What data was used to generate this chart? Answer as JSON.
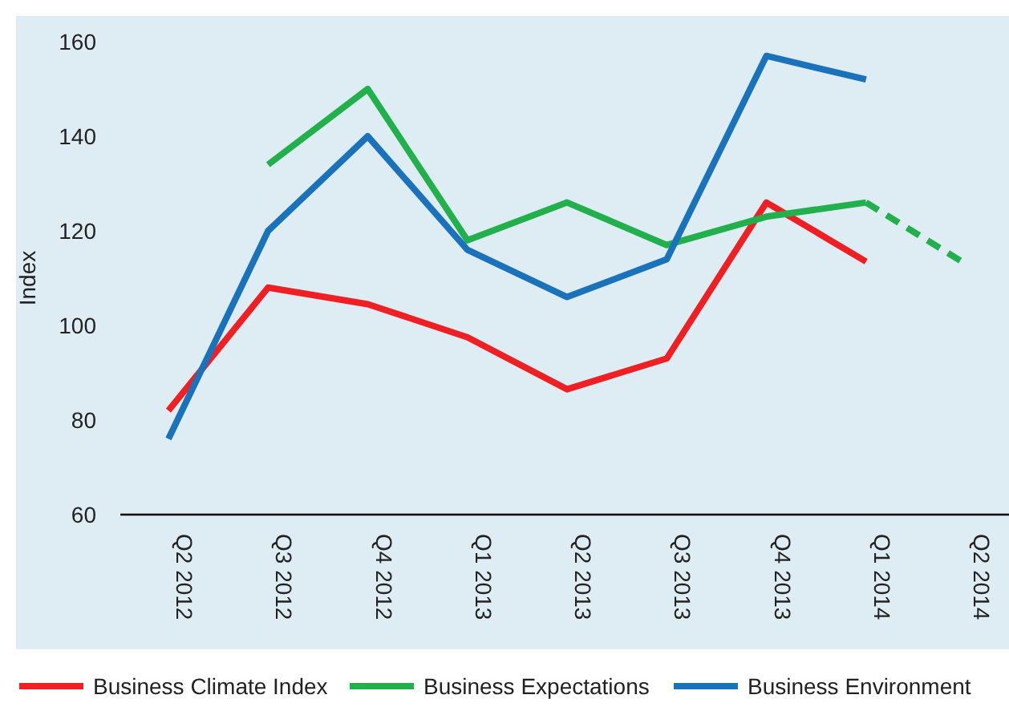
{
  "chart_data": {
    "type": "line",
    "ylabel": "Index",
    "categories": [
      "Q2 2012",
      "Q3 2012",
      "Q4 2012",
      "Q1 2013",
      "Q2 2013",
      "Q3 2013",
      "Q4 2013",
      "Q1 2014",
      "Q2 2014"
    ],
    "series": [
      {
        "name": "Business Climate Index",
        "color": "#ee2024",
        "values": [
          82,
          108,
          104.5,
          97.5,
          86.5,
          93,
          126,
          113.5,
          null
        ]
      },
      {
        "name": "Business Expectations",
        "color": "#21b04b",
        "values": [
          null,
          134,
          150,
          118,
          126,
          117,
          123,
          126,
          null
        ]
      },
      {
        "color": "#21b04b",
        "line_style": "dashed",
        "values": [
          null,
          null,
          null,
          null,
          null,
          null,
          null,
          126,
          113
        ]
      },
      {
        "name": "Business Environment",
        "color": "#1a72bb",
        "values": [
          76,
          120,
          140,
          116,
          106,
          114,
          157,
          152,
          null
        ]
      }
    ],
    "ylim": [
      60,
      160
    ],
    "yticks": [
      60,
      80,
      100,
      120,
      140,
      160
    ],
    "grid": false,
    "legend": "bottom",
    "marker": "none",
    "line_style": "solid"
  }
}
